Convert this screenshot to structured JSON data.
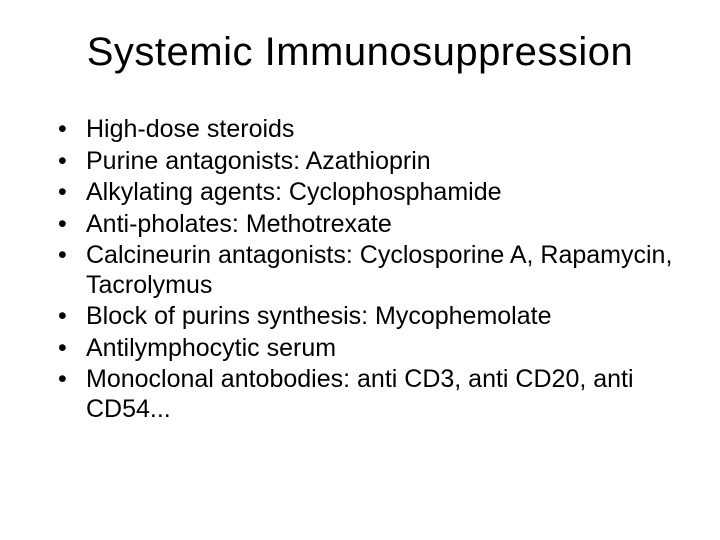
{
  "slide": {
    "background_color": "#ffffff",
    "text_color": "#000000",
    "title": {
      "text": "Systemic Immunosuppression",
      "fontsize": 40,
      "font_weight": 400,
      "align": "center"
    },
    "bullets": {
      "fontsize": 25,
      "line_height": 1.18,
      "marker": "•",
      "items": [
        "High-dose steroids",
        "Purine antagonists: Azathioprin",
        "Alkylating agents: Cyclophosphamide",
        "Anti-pholates: Methotrexate",
        "Calcineurin antagonists: Cyclosporine A, Rapamycin, Tacrolymus",
        "Block of purins synthesis: Mycophemolate",
        "Antilymphocytic serum",
        "Monoclonal antobodies: anti CD3, anti CD20, anti CD54..."
      ]
    }
  }
}
